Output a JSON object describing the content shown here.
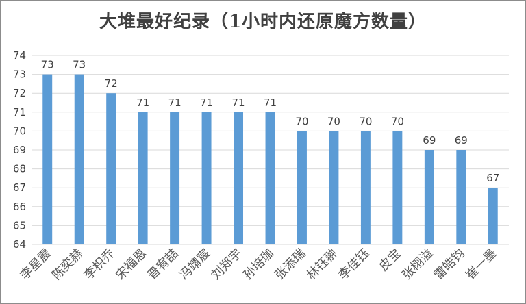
{
  "chart_data": {
    "type": "bar",
    "title": "大堆最好纪录（1小时内还原魔方数量）",
    "xlabel": "",
    "ylabel": "",
    "categories": [
      "李星震",
      "陈奕赫",
      "李枳乔",
      "宋福恩",
      "晋宥喆",
      "冯靖宸",
      "刘郑宇",
      "孙培珈",
      "张添瑞",
      "林钰翀",
      "李佳钰",
      "皮宝",
      "张栩溢",
      "雷皓钧",
      "崔一墨"
    ],
    "values": [
      73,
      73,
      72,
      71,
      71,
      71,
      71,
      71,
      70,
      70,
      70,
      70,
      69,
      69,
      67
    ],
    "ylim": [
      64,
      74
    ],
    "yticks": [
      64,
      65,
      66,
      67,
      68,
      69,
      70,
      71,
      72,
      73,
      74
    ],
    "grid": true,
    "legend": "none",
    "bar_color": "#5b9bd5",
    "grid_color": "#d9d9d9",
    "label_color": "#404040"
  }
}
